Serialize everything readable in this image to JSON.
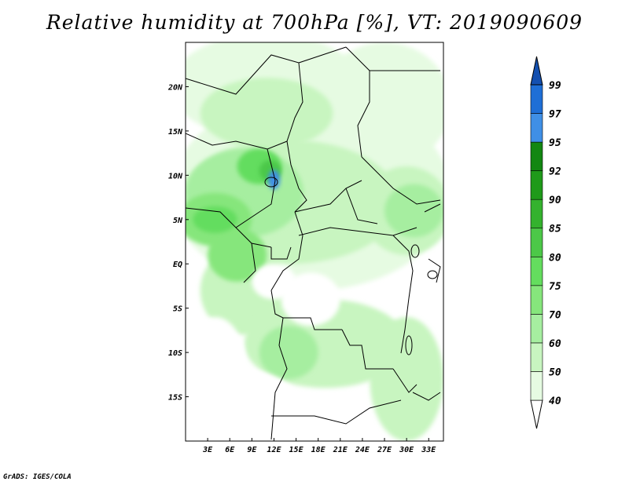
{
  "title": "Relative humidity at 700hPa [%], VT: 2019090609",
  "footer": "GrADS: IGES/COLA",
  "map": {
    "lon_range": [
      0,
      35
    ],
    "lat_range": [
      -20,
      25
    ],
    "lon_ticks": [
      {
        "value": 3,
        "label": "3E"
      },
      {
        "value": 6,
        "label": "6E"
      },
      {
        "value": 9,
        "label": "9E"
      },
      {
        "value": 12,
        "label": "12E"
      },
      {
        "value": 15,
        "label": "15E"
      },
      {
        "value": 18,
        "label": "18E"
      },
      {
        "value": 21,
        "label": "21E"
      },
      {
        "value": 24,
        "label": "24E"
      },
      {
        "value": 27,
        "label": "27E"
      },
      {
        "value": 30,
        "label": "30E"
      },
      {
        "value": 33,
        "label": "33E"
      }
    ],
    "lat_ticks": [
      {
        "value": 20,
        "label": "20N"
      },
      {
        "value": 15,
        "label": "15N"
      },
      {
        "value": 10,
        "label": "10N"
      },
      {
        "value": 5,
        "label": "5N"
      },
      {
        "value": 0,
        "label": "EQ"
      },
      {
        "value": -5,
        "label": "5S"
      },
      {
        "value": -10,
        "label": "10S"
      },
      {
        "value": -15,
        "label": "15S"
      }
    ]
  },
  "colorbar": {
    "levels": [
      "40",
      "50",
      "60",
      "70",
      "75",
      "80",
      "85",
      "90",
      "92",
      "95",
      "97",
      "99"
    ],
    "colors": [
      "#ffffff",
      "#e6fbe2",
      "#c8f5c0",
      "#a6eea0",
      "#86e67c",
      "#64dd5e",
      "#4cc848",
      "#34b22e",
      "#1f9a1a",
      "#138712",
      "#3f8fe6",
      "#1f6fd6",
      "#1450b0"
    ]
  },
  "regions": [
    {
      "level": 1,
      "lon": 11,
      "lat": 20,
      "rx": 13,
      "ry": 6
    },
    {
      "level": 1,
      "lon": 27,
      "lat": 18,
      "rx": 9,
      "ry": 7
    },
    {
      "level": 1,
      "lon": 17,
      "lat": 8,
      "rx": 19,
      "ry": 11
    },
    {
      "level": 2,
      "lon": 11,
      "lat": 17,
      "rx": 9,
      "ry": 4
    },
    {
      "level": 2,
      "lon": 14,
      "lat": 7,
      "rx": 15,
      "ry": 7
    },
    {
      "level": 2,
      "lon": 30,
      "lat": 6,
      "rx": 6,
      "ry": 5
    },
    {
      "level": 2,
      "lon": 8,
      "lat": -3,
      "rx": 6,
      "ry": 5
    },
    {
      "level": 2,
      "lon": 19,
      "lat": -9,
      "rx": 11,
      "ry": 5
    },
    {
      "level": 2,
      "lon": 30,
      "lat": -13,
      "rx": 5,
      "ry": 7
    },
    {
      "level": 3,
      "lon": 8,
      "lat": 8,
      "rx": 8,
      "ry": 5
    },
    {
      "level": 3,
      "lon": 31,
      "lat": 6,
      "rx": 4,
      "ry": 3
    },
    {
      "level": 3,
      "lon": 14,
      "lat": -10,
      "rx": 4,
      "ry": 3
    },
    {
      "level": 4,
      "lon": 4,
      "lat": 5,
      "rx": 5,
      "ry": 3
    },
    {
      "level": 4,
      "lon": 7,
      "lat": 1,
      "rx": 4,
      "ry": 3
    },
    {
      "level": 5,
      "lon": 10,
      "lat": 11,
      "rx": 3,
      "ry": 2
    },
    {
      "level": 5,
      "lon": 4,
      "lat": 5,
      "rx": 3,
      "ry": 1.5
    },
    {
      "level": 6,
      "lon": 11.5,
      "lat": 10.5,
      "rx": 1.5,
      "ry": 1.2
    },
    {
      "level": 10,
      "lon": 12,
      "lat": 9.5,
      "rx": 0.8,
      "ry": 1.1
    }
  ],
  "white_regions": [
    {
      "lon": 12,
      "lat": -2,
      "rx": 3,
      "ry": 2
    },
    {
      "lon": 17,
      "lat": -4,
      "rx": 4,
      "ry": 3
    },
    {
      "lon": 8,
      "lat": -17,
      "rx": 8,
      "ry": 5
    },
    {
      "lon": 4,
      "lat": -11,
      "rx": 4,
      "ry": 5
    }
  ]
}
